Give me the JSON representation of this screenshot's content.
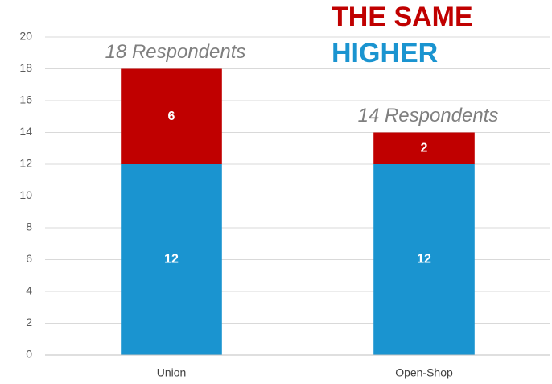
{
  "chart_data": {
    "type": "stacked_bar",
    "categories": [
      "Union",
      "Open-Shop"
    ],
    "series": [
      {
        "name": "HIGHER",
        "color": "#1a94d0",
        "values": [
          12,
          12
        ]
      },
      {
        "name": "THE SAME",
        "color": "#c00000",
        "values": [
          6,
          2
        ]
      }
    ],
    "annotations": [
      "18 Respondents",
      "14 Respondents"
    ],
    "ylim": [
      0,
      20
    ],
    "yticks": [
      0,
      2,
      4,
      6,
      8,
      10,
      12,
      14,
      16,
      18,
      20
    ],
    "grid": true
  }
}
